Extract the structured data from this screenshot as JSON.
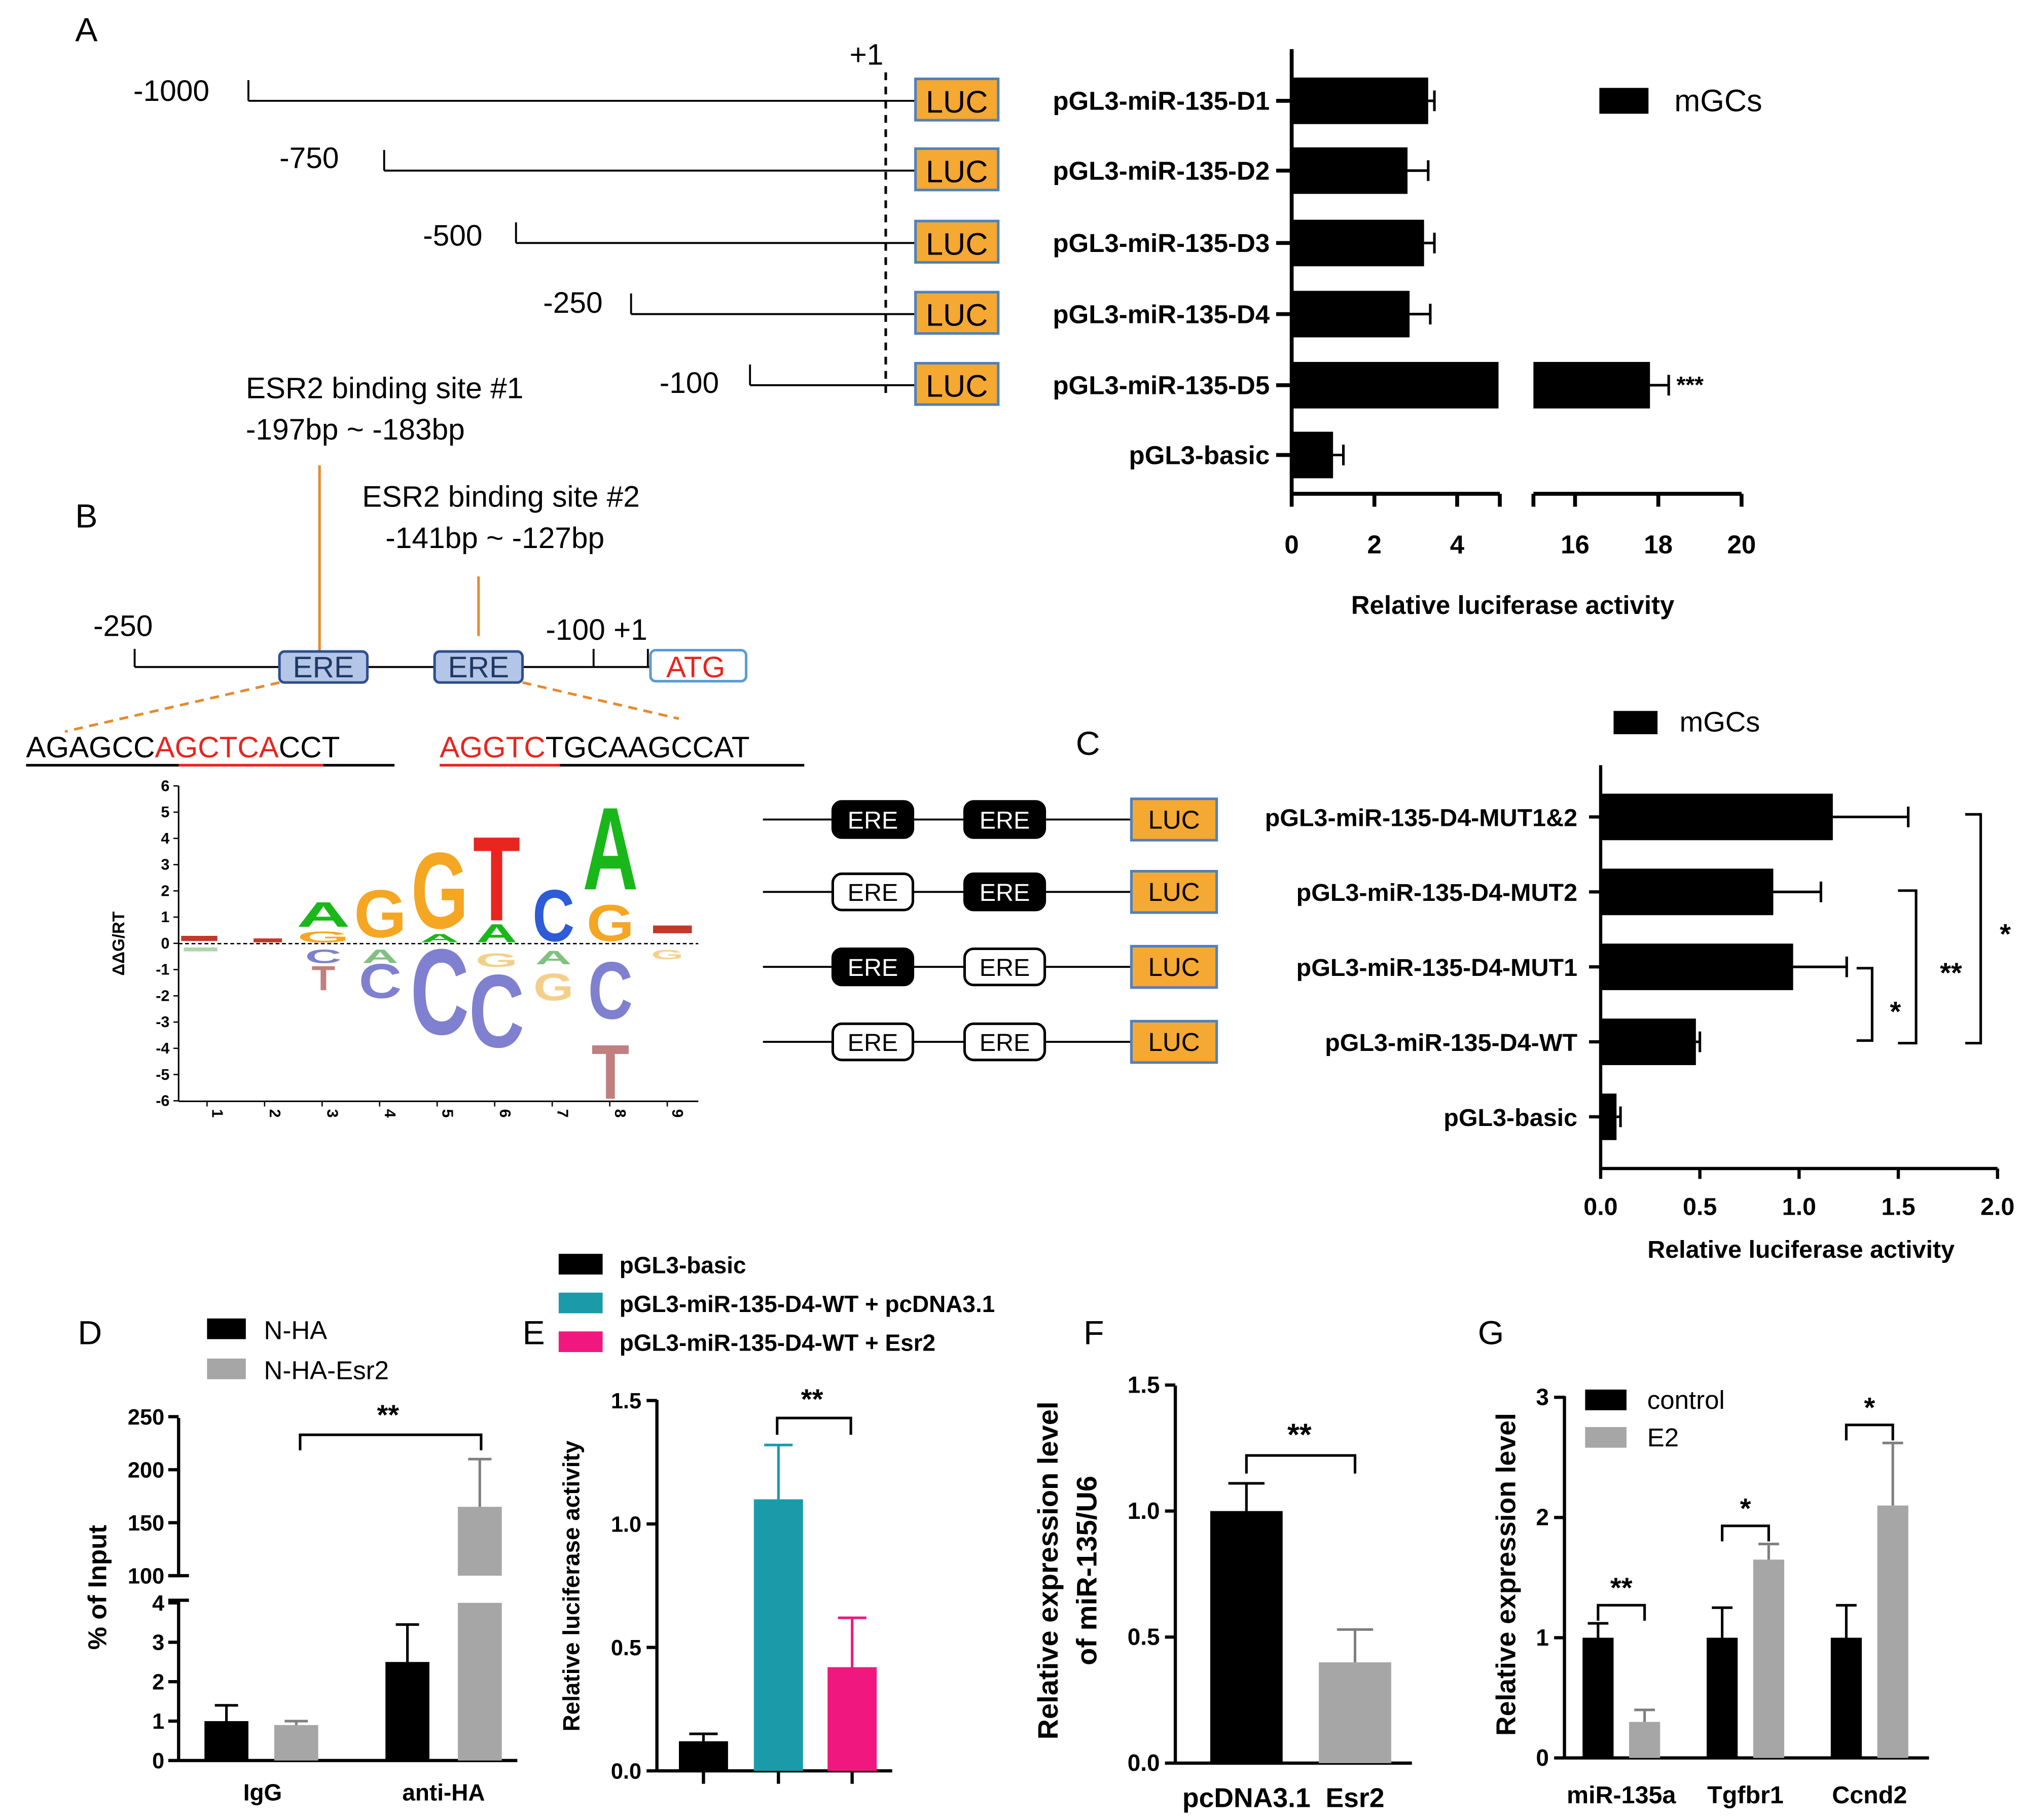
{
  "panel_labels": {
    "a": "A",
    "b": "B",
    "c": "C",
    "d": "D",
    "e": "E",
    "f": "F",
    "g": "G"
  },
  "colors": {
    "bar": "#000000",
    "gray": "#a6a6a6",
    "teal": "#1b9aaa",
    "magenta": "#f0187e",
    "luc": "#f5a832",
    "luc_border": "#4f81bd",
    "ere_fill": "#b4c6e7",
    "ere_border": "#2f4f8f",
    "red": "#e8251f",
    "orange": "#e58a2e"
  },
  "panel_a": {
    "tss_label": "+1",
    "luc_label": "LUC",
    "legend": "mGCs",
    "start_labels": [
      "-1000",
      "-750",
      "-500",
      "-250",
      "-100"
    ],
    "chart_data": {
      "type": "bar",
      "orientation": "horizontal",
      "axis_break": [
        5,
        15
      ],
      "categories": [
        "pGL3-miR-135-D1",
        "pGL3-miR-135-D2",
        "pGL3-miR-135-D3",
        "pGL3-miR-135-D4",
        "pGL3-miR-135-D5",
        "pGL3-basic"
      ],
      "values": [
        3.3,
        2.8,
        3.2,
        2.85,
        17.8,
        1.0
      ],
      "errors": [
        0.15,
        0.5,
        0.25,
        0.5,
        0.45,
        0.25
      ],
      "significance": [
        "",
        "",
        "",
        "",
        "***",
        ""
      ],
      "xlim": [
        0,
        20
      ],
      "xticks": [
        "0",
        "2",
        "4",
        "16",
        "18",
        "20"
      ],
      "xlabel": "Relative luciferase activity",
      "legend": "mGCs"
    }
  },
  "panel_b": {
    "site1_title": "ESR2 binding site #1",
    "site1_range": "-197bp ~  -183bp",
    "site2_title": "ESR2 binding site #2",
    "site2_range": "-141bp ~  -127bp",
    "pos_left": "-250",
    "pos_right": "-100 +1",
    "ere": "ERE",
    "atg": "ATG",
    "seq1": {
      "a": "AGAGCC",
      "b": "AGCTCA",
      "c": "CCT"
    },
    "seq2": {
      "a": "AGGTC",
      "b": "TGCAAGCCAT"
    },
    "logo_ylabel": "ΔΔG/RT",
    "logo_yticks": [
      "6",
      "5",
      "4",
      "3",
      "2",
      "1",
      "0",
      "-1",
      "-2",
      "-3",
      "-4",
      "-5",
      "-6"
    ],
    "logo_xticks": [
      "1",
      "2",
      "3",
      "4",
      "5",
      "6",
      "7",
      "8",
      "9"
    ],
    "logo_letters": {
      "A": "A",
      "G": "G",
      "T": "T",
      "C": "C"
    }
  },
  "panel_c": {
    "legend": "mGCs",
    "ere": "ERE",
    "luc": "LUC",
    "chart_data": {
      "type": "bar",
      "orientation": "horizontal",
      "categories": [
        "pGL3-miR-135-D4-MUT1&2",
        "pGL3-miR-135-D4-MUT2",
        "pGL3-miR-135-D4-MUT1",
        "pGL3-miR-135-D4-WT",
        "pGL3-basic"
      ],
      "values": [
        1.17,
        0.87,
        0.97,
        0.48,
        0.08
      ],
      "errors": [
        0.38,
        0.24,
        0.27,
        0.02,
        0.02
      ],
      "xlim": [
        0,
        2.0
      ],
      "xticks": [
        "0.0",
        "0.5",
        "1.0",
        "1.5",
        "2.0"
      ],
      "xlabel": "Relative luciferase activity",
      "legend": "mGCs",
      "significance": [
        "*",
        "**",
        "*"
      ]
    }
  },
  "panel_d": {
    "chart_data": {
      "type": "bar",
      "axis_break": [
        4,
        100
      ],
      "categories": [
        "IgG",
        "anti-HA"
      ],
      "series": [
        {
          "name": "N-HA",
          "values": [
            1.0,
            2.5
          ],
          "errors": [
            0.4,
            0.95
          ]
        },
        {
          "name": "N-HA-Esr2",
          "values": [
            0.9,
            165
          ],
          "errors": [
            0.1,
            45
          ]
        }
      ],
      "ylabel": "% of Input",
      "yticks_low": [
        "0",
        "1",
        "2",
        "3",
        "4"
      ],
      "yticks_high": [
        "100",
        "150",
        "200",
        "250"
      ],
      "significance": "**"
    }
  },
  "panel_e": {
    "chart_data": {
      "type": "bar",
      "series": [
        {
          "name": "pGL3-basic",
          "value": 0.12,
          "error": 0.03
        },
        {
          "name": "pGL3-miR-135-D4-WT + pcDNA3.1",
          "value": 1.1,
          "error": 0.22
        },
        {
          "name": "pGL3-miR-135-D4-WT + Esr2",
          "value": 0.42,
          "error": 0.2
        }
      ],
      "ylabel": "Relative luciferase activity",
      "ylim": [
        0,
        1.5
      ],
      "yticks": [
        "0.0",
        "0.5",
        "1.0",
        "1.5"
      ],
      "significance": "**"
    }
  },
  "panel_f": {
    "chart_data": {
      "type": "bar",
      "categories": [
        "pcDNA3.1",
        "Esr2"
      ],
      "values": [
        1.0,
        0.4
      ],
      "errors": [
        0.11,
        0.13
      ],
      "ylabel_line1": "Relative  expression level",
      "ylabel_line2": "of miR-135/U6",
      "ylim": [
        0,
        1.5
      ],
      "yticks": [
        "0.0",
        "0.5",
        "1.0",
        "1.5"
      ],
      "significance": "**"
    }
  },
  "panel_g": {
    "chart_data": {
      "type": "bar",
      "categories": [
        "miR-135a",
        "Tgfbr1",
        "Ccnd2"
      ],
      "series": [
        {
          "name": "control",
          "values": [
            1.0,
            1.0,
            1.0
          ],
          "errors": [
            0.12,
            0.25,
            0.27
          ]
        },
        {
          "name": "E2",
          "values": [
            0.3,
            1.65,
            2.1
          ],
          "errors": [
            0.1,
            0.13,
            0.52
          ]
        }
      ],
      "ylabel": "Relative  expression level",
      "ylim": [
        0,
        3
      ],
      "yticks": [
        "0",
        "1",
        "2",
        "3"
      ],
      "significance": [
        "**",
        "*",
        "*"
      ]
    }
  }
}
